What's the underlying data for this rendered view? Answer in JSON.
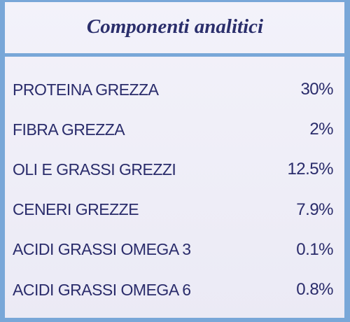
{
  "header": {
    "title": "Componenti analitici"
  },
  "table": {
    "rows": [
      [
        "PROTEINA GREZZA",
        "30%"
      ],
      [
        "FIBRA GREZZA",
        "2%"
      ],
      [
        "OLI E GRASSI GREZZI",
        "12.5%"
      ],
      [
        "CENERI GREZZE",
        "7.9%"
      ],
      [
        "ACIDI GRASSI OMEGA 3",
        "0.1%"
      ],
      [
        "ACIDI GRASSI OMEGA 6",
        "0.8%"
      ]
    ]
  }
}
